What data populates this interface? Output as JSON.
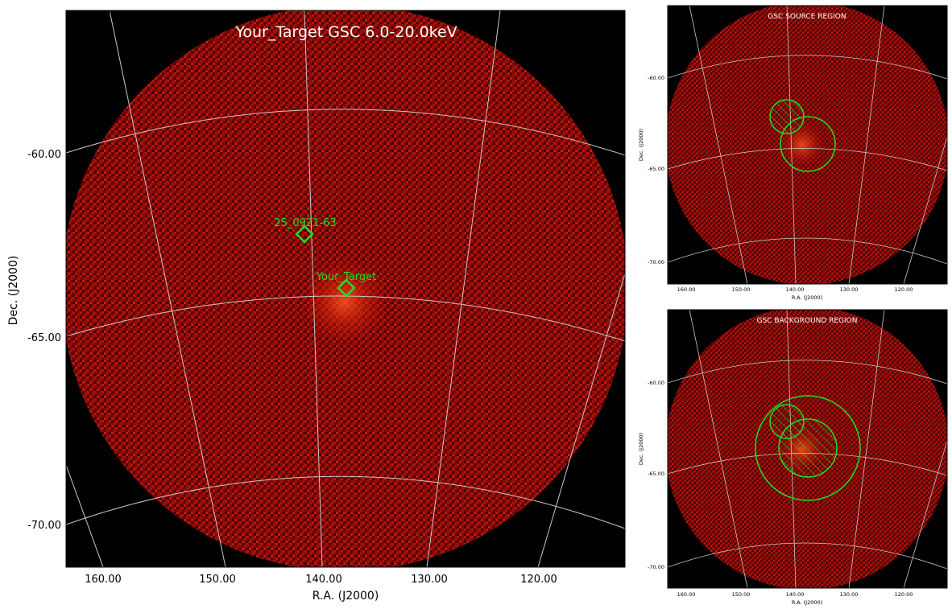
{
  "main": {
    "title": "Your_Target GSC 6.0-20.0keV",
    "xlabel": "R.A. (J2000)",
    "ylabel": "Dec. (J2000)",
    "ra_ticks": [
      "160.00",
      "150.00",
      "140.00",
      "130.00",
      "120.00"
    ],
    "dec_ticks": [
      "-60.00",
      "-65.00",
      "-70.00"
    ],
    "sources": [
      {
        "label": "2S_0921-63"
      },
      {
        "label": "Your_Target"
      }
    ]
  },
  "source_panel": {
    "title": "GSC SOURCE REGION",
    "xlabel": "R.A. (J2000)",
    "ylabel": "Dec. (J2000)",
    "ra_ticks": [
      "160.00",
      "150.00",
      "140.00",
      "130.00",
      "120.00"
    ],
    "dec_ticks": [
      "-60.00",
      "-65.00",
      "-70.00"
    ]
  },
  "background_panel": {
    "title": "GSC BACKGROUND REGION",
    "xlabel": "R.A. (J2000)",
    "ylabel": "Dec. (J2000)",
    "ra_ticks": [
      "160.00",
      "150.00",
      "140.00",
      "130.00",
      "120.00"
    ],
    "dec_ticks": [
      "-60.00",
      "-65.00",
      "-70.00"
    ]
  },
  "colors": {
    "background": "#000000",
    "emission": "#c01008",
    "marker": "#22dd22",
    "grid": "#c8c8c8",
    "title_text": "#ffffff"
  }
}
